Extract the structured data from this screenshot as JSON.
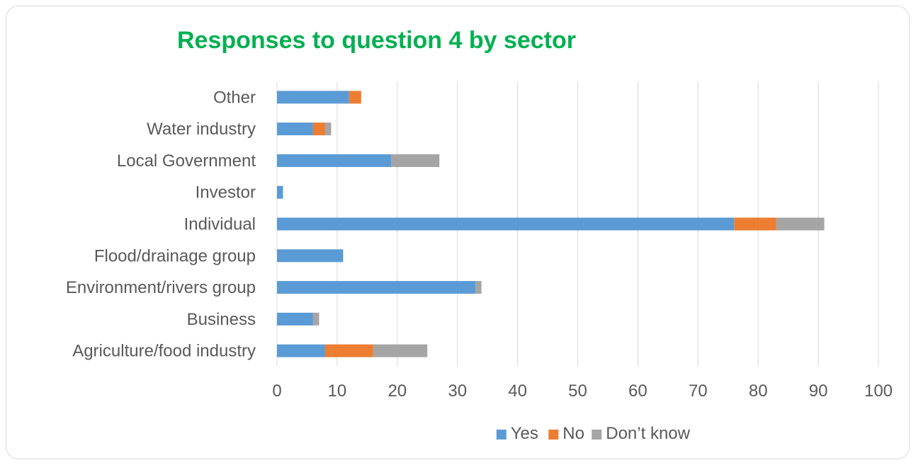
{
  "chart_data": {
    "type": "bar",
    "orientation": "horizontal",
    "stacked": true,
    "title": "Responses to question  4 by sector",
    "categories": [
      "Agriculture/food industry",
      "Business",
      "Environment/rivers group",
      "Flood/drainage group",
      "Individual",
      "Investor",
      "Local Government",
      "Water industry",
      "Other"
    ],
    "series": [
      {
        "name": "Yes",
        "color": "#5b9bd5",
        "values": [
          8,
          6,
          33,
          11,
          76,
          1,
          19,
          6,
          12
        ]
      },
      {
        "name": "No",
        "color": "#ed7d31",
        "values": [
          8,
          0,
          0,
          0,
          7,
          0,
          0,
          2,
          2
        ]
      },
      {
        "name": "Don’t know",
        "color": "#a5a5a5",
        "values": [
          9,
          1,
          1,
          0,
          8,
          0,
          8,
          1,
          0
        ]
      }
    ],
    "xlim": [
      0,
      100
    ],
    "x_ticks": [
      "0",
      "10",
      "20",
      "30",
      "40",
      "50",
      "60",
      "70",
      "80",
      "90",
      "100"
    ],
    "grid": "vertical",
    "legend_position": "bottom",
    "title_color": "#00b050",
    "gridline_color": "#d9d9d9",
    "text_color": "#595959"
  }
}
